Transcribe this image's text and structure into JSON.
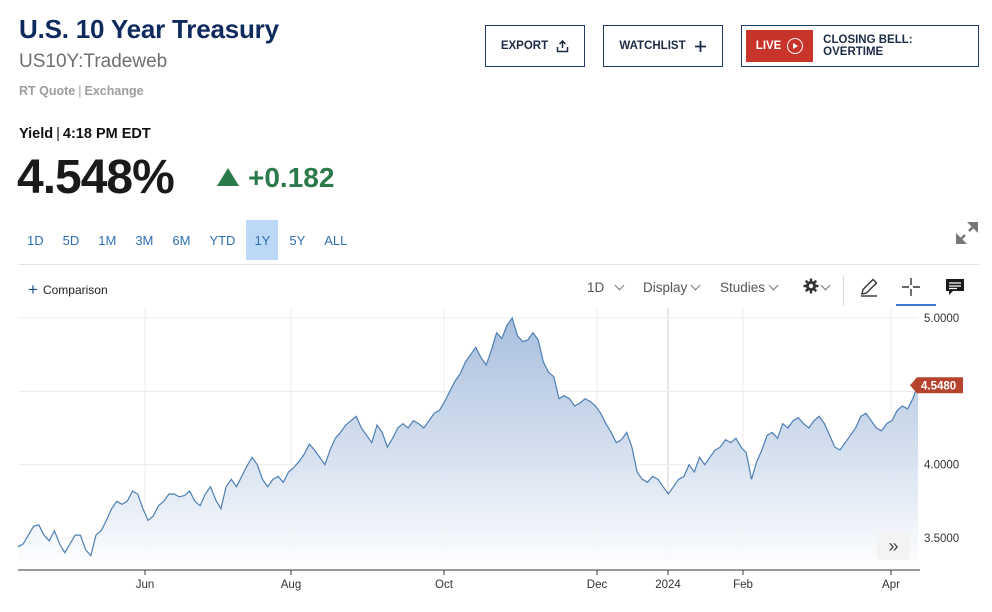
{
  "header": {
    "title": "U.S. 10 Year Treasury",
    "symbol": "US10Y:Tradeweb",
    "quote_type": "RT Quote",
    "quote_source": "Exchange"
  },
  "buttons": {
    "export_label": "EXPORT",
    "watchlist_label": "WATCHLIST",
    "live_label": "LIVE",
    "closing_bell_label": "CLOSING BELL: OVERTIME"
  },
  "quote": {
    "label": "Yield",
    "time": "4:18 PM EDT",
    "last": "4.548%",
    "change": "+0.182",
    "change_color": "#2b7a4b"
  },
  "ranges": [
    {
      "label": "1D"
    },
    {
      "label": "5D"
    },
    {
      "label": "1M"
    },
    {
      "label": "3M"
    },
    {
      "label": "6M"
    },
    {
      "label": "YTD"
    },
    {
      "label": "1Y",
      "active": true
    },
    {
      "label": "5Y"
    },
    {
      "label": "ALL"
    }
  ],
  "toolbar": {
    "comparison_label": "Comparison",
    "interval_label": "1D",
    "display_label": "Display",
    "studies_label": "Studies",
    "icons": [
      "gear-icon",
      "pencil-icon",
      "crosshair-icon",
      "comment-icon",
      "expand-icon",
      "double-chevron-right-icon"
    ]
  },
  "chart_data": {
    "type": "area",
    "series": [
      {
        "values": [
          3.44,
          3.46,
          3.52,
          3.58,
          3.59,
          3.52,
          3.48,
          3.55,
          3.46,
          3.4,
          3.46,
          3.52,
          3.52,
          3.42,
          3.38,
          3.52,
          3.55,
          3.62,
          3.7,
          3.75,
          3.73,
          3.75,
          3.82,
          3.8,
          3.7,
          3.62,
          3.65,
          3.72,
          3.75,
          3.8,
          3.8,
          3.78,
          3.79,
          3.82,
          3.75,
          3.72,
          3.8,
          3.85,
          3.76,
          3.7,
          3.85,
          3.9,
          3.85,
          3.92,
          3.99,
          4.05,
          4.0,
          3.9,
          3.85,
          3.9,
          3.92,
          3.88,
          3.95,
          3.98,
          4.02,
          4.07,
          4.14,
          4.1,
          4.05,
          4.0,
          4.1,
          4.18,
          4.22,
          4.27,
          4.3,
          4.33,
          4.25,
          4.2,
          4.15,
          4.27,
          4.22,
          4.12,
          4.18,
          4.25,
          4.28,
          4.25,
          4.3,
          4.28,
          4.25,
          4.3,
          4.35,
          4.37,
          4.43,
          4.5,
          4.57,
          4.62,
          4.7,
          4.75,
          4.8,
          4.73,
          4.68,
          4.78,
          4.9,
          4.86,
          4.95,
          5.0,
          4.88,
          4.84,
          4.85,
          4.9,
          4.85,
          4.7,
          4.63,
          4.6,
          4.45,
          4.47,
          4.45,
          4.4,
          4.42,
          4.45,
          4.43,
          4.4,
          4.35,
          4.28,
          4.22,
          4.15,
          4.17,
          4.22,
          4.12,
          3.95,
          3.9,
          3.88,
          3.92,
          3.9,
          3.85,
          3.8,
          3.85,
          3.9,
          3.92,
          4.0,
          3.95,
          4.05,
          4.0,
          4.05,
          4.1,
          4.12,
          4.17,
          4.15,
          4.18,
          4.12,
          4.08,
          3.9,
          4.02,
          4.1,
          4.2,
          4.22,
          4.18,
          4.28,
          4.25,
          4.3,
          4.32,
          4.28,
          4.25,
          4.3,
          4.33,
          4.28,
          4.2,
          4.12,
          4.1,
          4.15,
          4.2,
          4.25,
          4.33,
          4.35,
          4.3,
          4.25,
          4.23,
          4.28,
          4.3,
          4.37,
          4.4,
          4.38,
          4.45,
          4.548
        ]
      }
    ],
    "x_ticks": [
      "Jun",
      "Aug",
      "Oct",
      "Dec",
      "2024",
      "Feb",
      "Apr"
    ],
    "y_ticks": [
      "5.0000",
      "4.0000",
      "3.5000"
    ],
    "ylim": [
      3.3,
      5.06
    ],
    "last_value_label": "4.5480",
    "line_color": "#4d7fb3",
    "last_badge_color": "#b5432d",
    "grid": true
  }
}
